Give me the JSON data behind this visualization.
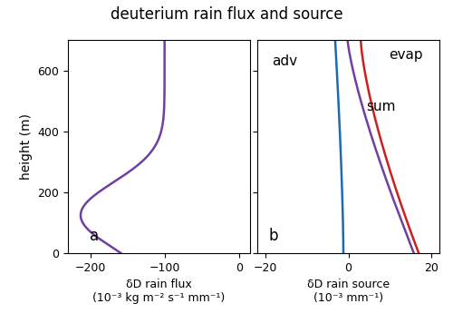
{
  "title": "deuterium rain flux and source",
  "ylabel": "height (m)",
  "xlabel_a": "δD rain flux\n(10⁻³ kg m⁻² s⁻¹ mm⁻¹)",
  "xlabel_b": "δD rain source\n(10⁻³ mm⁻¹)",
  "panel_a_label": "a",
  "panel_b_label": "b",
  "xlim_a": [
    -230,
    15
  ],
  "xlim_b": [
    -22,
    22
  ],
  "ylim": [
    0,
    700
  ],
  "xticks_a": [
    -200,
    -100,
    0
  ],
  "xticks_b": [
    -20,
    0,
    20
  ],
  "yticks": [
    0,
    200,
    400,
    600
  ],
  "color_flux": "#7040A0",
  "color_adv": "#1A6AB5",
  "color_evap": "#CC2020",
  "color_sum": "#7040A0",
  "label_adv": "adv",
  "label_evap": "evap",
  "label_sum": "sum",
  "height_max": 700
}
